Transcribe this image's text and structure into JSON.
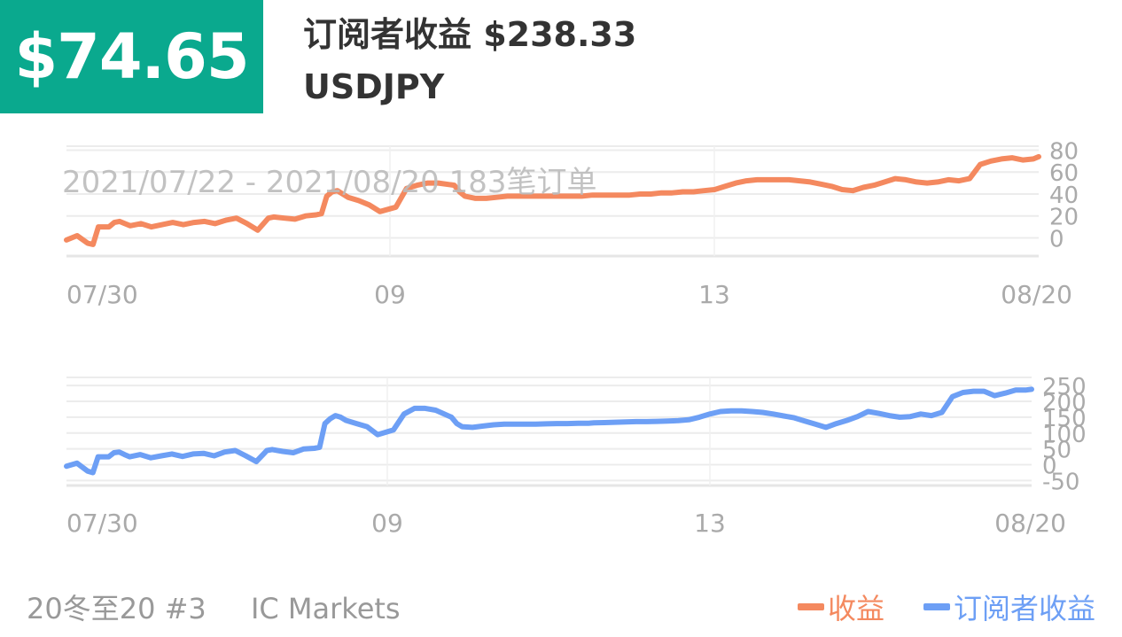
{
  "header": {
    "badge_value": "$74.65",
    "title": "订阅者收益 $238.33",
    "symbol": "USDJPY"
  },
  "footer": {
    "left_text": "20冬至20 #3",
    "broker": "IC Markets"
  },
  "legend": {
    "items": [
      {
        "label": "收益",
        "color": "#f4895f"
      },
      {
        "label": "订阅者收益",
        "color": "#6d9ff5"
      }
    ]
  },
  "colors": {
    "accent": "#0aa98e",
    "profit": "#f4895f",
    "subscriber": "#6d9ff5"
  },
  "chart_data": [
    {
      "type": "line",
      "watermark": "2021/07/22 - 2021/08/20  183笔订单",
      "x_tick_labels": [
        "07/30",
        "09",
        "13",
        "08/20"
      ],
      "y_ticks": [
        0,
        20,
        40,
        60,
        80
      ],
      "ylim": [
        -15,
        82
      ],
      "grid": true,
      "series": [
        {
          "name": "收益",
          "color": "#f4895f",
          "x": [
            0,
            2,
            4,
            5,
            6,
            8,
            9,
            10,
            11,
            12,
            14,
            16,
            18,
            20,
            22,
            24,
            26,
            28,
            30,
            32,
            34,
            36,
            38,
            39,
            41,
            43,
            45,
            47,
            48,
            49,
            50,
            51,
            52,
            53,
            55,
            57,
            59,
            62,
            64,
            66,
            68,
            70,
            73,
            74,
            75,
            77,
            79,
            81,
            83,
            85,
            87,
            89,
            91,
            93,
            95,
            97,
            99,
            100,
            102,
            104,
            106,
            108,
            110,
            112,
            114,
            116,
            118,
            120,
            122,
            124,
            126,
            128,
            130,
            132,
            134,
            136,
            138,
            140,
            142,
            144,
            146,
            148,
            150,
            152,
            154,
            156,
            158,
            160,
            162,
            164,
            166,
            168,
            170,
            172,
            174,
            176,
            178,
            180,
            182,
            183
          ],
          "y": [
            -2,
            2,
            -5,
            -6,
            10,
            10,
            14,
            15,
            13,
            11,
            13,
            10,
            12,
            14,
            12,
            14,
            15,
            13,
            16,
            18,
            13,
            7,
            18,
            19,
            18,
            17,
            20,
            21,
            22,
            38,
            42,
            43,
            40,
            37,
            34,
            30,
            24,
            28,
            45,
            48,
            50,
            50,
            48,
            42,
            38,
            36,
            36,
            37,
            38,
            38,
            38,
            38,
            38,
            38,
            38,
            38,
            39,
            39,
            39,
            39,
            39,
            40,
            40,
            41,
            41,
            42,
            42,
            43,
            44,
            47,
            50,
            52,
            53,
            53,
            53,
            53,
            52,
            51,
            49,
            47,
            44,
            43,
            46,
            48,
            51,
            54,
            53,
            51,
            50,
            51,
            53,
            52,
            54,
            67,
            70,
            72,
            73,
            71,
            72,
            74
          ]
        }
      ]
    },
    {
      "type": "line",
      "x_tick_labels": [
        "07/30",
        "09",
        "13",
        "08/20"
      ],
      "y_ticks": [
        -50,
        0,
        50,
        100,
        150,
        200,
        250
      ],
      "ylim": [
        -60,
        270
      ],
      "grid": true,
      "series": [
        {
          "name": "订阅者收益",
          "color": "#6d9ff5",
          "x": [
            0,
            2,
            4,
            5,
            6,
            8,
            9,
            10,
            11,
            12,
            14,
            16,
            18,
            20,
            22,
            24,
            26,
            28,
            30,
            32,
            34,
            36,
            38,
            39,
            41,
            43,
            45,
            47,
            48,
            49,
            50,
            51,
            52,
            53,
            55,
            57,
            59,
            62,
            64,
            66,
            68,
            70,
            73,
            74,
            75,
            77,
            79,
            81,
            83,
            85,
            87,
            89,
            91,
            93,
            95,
            97,
            99,
            100,
            102,
            104,
            106,
            108,
            110,
            112,
            114,
            116,
            118,
            120,
            122,
            124,
            126,
            128,
            130,
            132,
            134,
            136,
            138,
            140,
            142,
            144,
            146,
            148,
            150,
            152,
            154,
            156,
            158,
            160,
            162,
            164,
            166,
            168,
            170,
            172,
            174,
            176,
            178,
            180,
            182,
            183
          ],
          "y": [
            -5,
            5,
            -20,
            -25,
            25,
            25,
            38,
            40,
            32,
            25,
            32,
            22,
            28,
            34,
            26,
            34,
            36,
            28,
            40,
            45,
            28,
            10,
            45,
            48,
            42,
            38,
            50,
            52,
            55,
            130,
            145,
            155,
            150,
            140,
            130,
            120,
            95,
            110,
            160,
            178,
            178,
            172,
            150,
            130,
            120,
            118,
            122,
            126,
            128,
            128,
            128,
            128,
            129,
            130,
            130,
            131,
            131,
            132,
            133,
            134,
            135,
            136,
            136,
            137,
            138,
            139,
            142,
            150,
            160,
            168,
            170,
            170,
            168,
            165,
            160,
            154,
            148,
            138,
            128,
            118,
            130,
            140,
            152,
            168,
            162,
            155,
            150,
            152,
            160,
            155,
            165,
            215,
            228,
            232,
            232,
            218,
            226,
            236,
            236,
            238
          ]
        }
      ]
    }
  ]
}
